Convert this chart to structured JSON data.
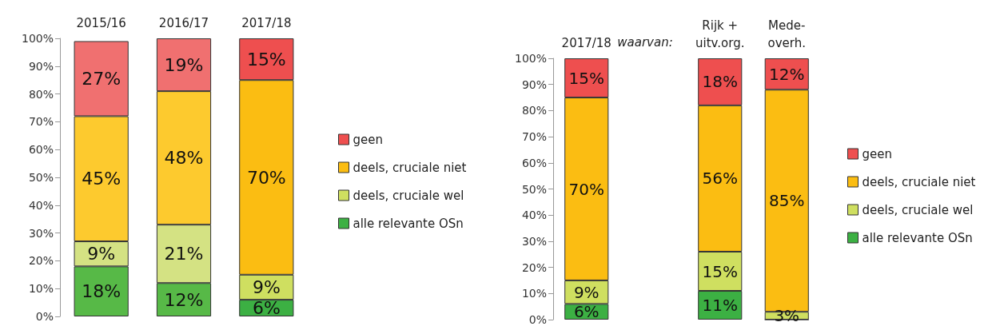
{
  "chart_data": [
    {
      "type": "bar",
      "stacked": true,
      "categories": [
        "2015/16",
        "2016/17",
        "2017/18"
      ],
      "ylim": [
        0,
        100
      ],
      "yticks": [
        {
          "value": 0,
          "label": "0%"
        },
        {
          "value": 10,
          "label": "10%"
        },
        {
          "value": 20,
          "label": "20%"
        },
        {
          "value": 30,
          "label": "30%"
        },
        {
          "value": 40,
          "label": "40%"
        },
        {
          "value": 50,
          "label": "50%"
        },
        {
          "value": 60,
          "label": "60%"
        },
        {
          "value": 70,
          "label": "70%"
        },
        {
          "value": 80,
          "label": "80%"
        },
        {
          "value": 90,
          "label": "90%"
        },
        {
          "value": 100,
          "label": "100%"
        }
      ],
      "grid": false,
      "legend": "right",
      "series": [
        {
          "name": "alle relevante OSn",
          "color": "#3cb043",
          "colors": [
            "#57b947",
            "#57b947",
            "#3cb043"
          ],
          "values": [
            18,
            12,
            6
          ],
          "value_labels": [
            "18%",
            "12%",
            "6%"
          ]
        },
        {
          "name": "deels, cruciale wel",
          "color": "#cfdf60",
          "colors": [
            "#d4e283",
            "#d4e283",
            "#cfdf60"
          ],
          "values": [
            9,
            21,
            9
          ],
          "value_labels": [
            "9%",
            "21%",
            "9%"
          ]
        },
        {
          "name": "deels, cruciale niet",
          "color": "#fbbd12",
          "colors": [
            "#fdca2e",
            "#fdca2e",
            "#fbbd12"
          ],
          "values": [
            45,
            48,
            70
          ],
          "value_labels": [
            "45%",
            "48%",
            "70%"
          ]
        },
        {
          "name": "geen",
          "color": "#ee4f4f",
          "colors": [
            "#f07070",
            "#f07070",
            "#ee4f4f"
          ],
          "values": [
            27,
            19,
            15
          ],
          "value_labels": [
            "27%",
            "19%",
            "15%"
          ]
        }
      ]
    },
    {
      "type": "bar",
      "stacked": true,
      "categories": [
        "2017/18",
        null,
        "Rijk +\nuitv.org.",
        "Mede-\noverh."
      ],
      "ylim": [
        0,
        100
      ],
      "annotations": [
        "waarvan:"
      ],
      "yticks": [
        {
          "value": 0,
          "label": "0%"
        },
        {
          "value": 10,
          "label": "10%"
        },
        {
          "value": 20,
          "label": "20%"
        },
        {
          "value": 30,
          "label": "30%"
        },
        {
          "value": 40,
          "label": "40%"
        },
        {
          "value": 50,
          "label": "50%"
        },
        {
          "value": 60,
          "label": "60%"
        },
        {
          "value": 70,
          "label": "70%"
        },
        {
          "value": 80,
          "label": "80%"
        },
        {
          "value": 90,
          "label": "90%"
        },
        {
          "value": 100,
          "label": "100%"
        }
      ],
      "grid": false,
      "legend": "right",
      "series": [
        {
          "name": "alle relevante OSn",
          "color": "#3cb043",
          "values": [
            6,
            null,
            11,
            0
          ],
          "value_labels": [
            "6%",
            null,
            "11%",
            null
          ]
        },
        {
          "name": "deels, cruciale wel",
          "color": "#cfdf60",
          "values": [
            9,
            null,
            15,
            3
          ],
          "value_labels": [
            "9%",
            null,
            "15%",
            "3%"
          ]
        },
        {
          "name": "deels, cruciale niet",
          "color": "#fbbd12",
          "values": [
            70,
            null,
            56,
            85
          ],
          "value_labels": [
            "70%",
            null,
            "56%",
            "85%"
          ]
        },
        {
          "name": "geen",
          "color": "#ee4f4f",
          "values": [
            15,
            null,
            18,
            12
          ],
          "value_labels": [
            "15%",
            null,
            "18%",
            "12%"
          ]
        }
      ]
    }
  ]
}
